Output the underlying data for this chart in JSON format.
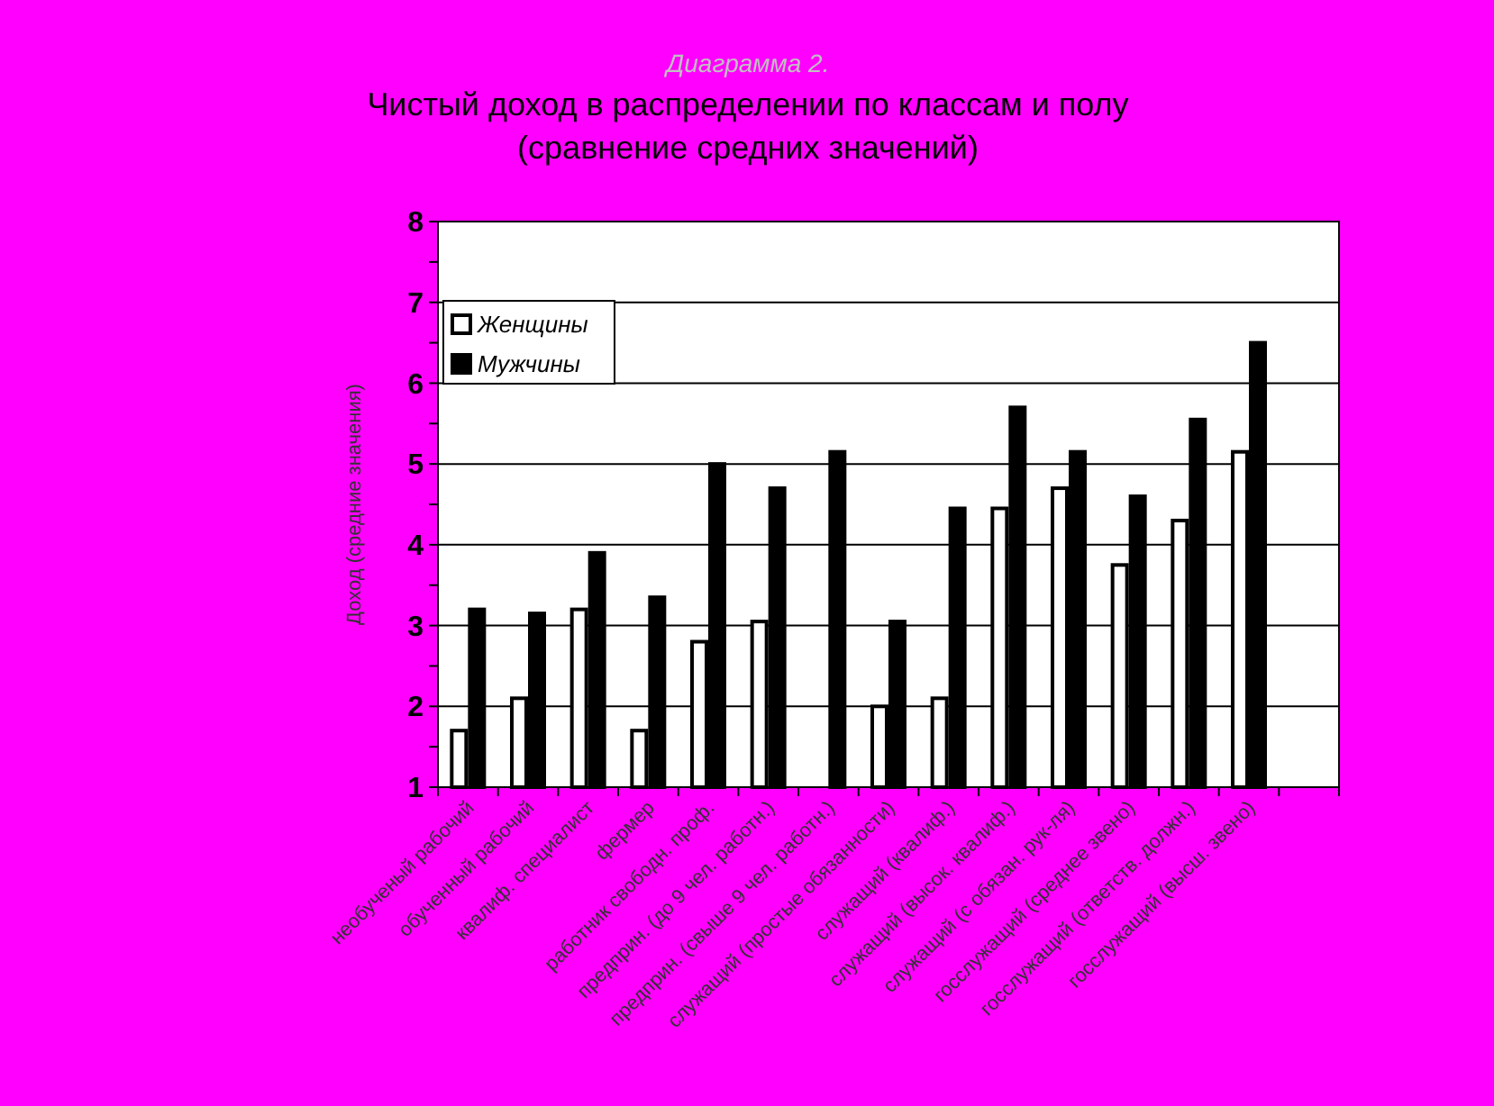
{
  "chart_data": {
    "type": "bar",
    "subtitle": "Диаграмма 2.",
    "title": "Чистый доход в распределении по классам и полу\n(сравнение средних значений)",
    "ylabel": "Доход (средние значения)",
    "categories": [
      "необученый рабочий",
      "обученный рабочий",
      "квалиф. специалист",
      "фермер",
      "работник свободн. проф.",
      "предприн. (до 9 чел. работн.)",
      "предприн. (свыше 9 чел. работн.)",
      "служащий (простые обязанности)",
      "служащий (квалиф.)",
      "служащий (высок. квалиф.)",
      "служащий (с обязан. рук-ля)",
      "госслужащий (среднее звено)",
      "госслужащий (ответств. должн.)",
      "госслужащий (высш. звено)",
      null
    ],
    "series": [
      {
        "name": "Женщины",
        "color": "#ffffff",
        "values": [
          1.7,
          2.1,
          3.2,
          1.7,
          2.8,
          3.05,
          null,
          2.0,
          2.1,
          4.45,
          4.7,
          3.75,
          4.3,
          5.15,
          null
        ]
      },
      {
        "name": "Мужчины",
        "color": "#000000",
        "values": [
          3.2,
          3.15,
          3.9,
          3.35,
          5.0,
          4.7,
          5.15,
          3.05,
          4.45,
          5.7,
          5.15,
          4.6,
          5.55,
          6.5,
          null
        ]
      }
    ],
    "ylim": [
      1,
      8
    ],
    "yticks": [
      1,
      {
        "value": 1.5,
        "label": null
      },
      2,
      {
        "value": 2.5,
        "label": null
      },
      3,
      {
        "value": 3.5,
        "label": null
      },
      4,
      {
        "value": 4.5,
        "label": null
      },
      5,
      {
        "value": 5.5,
        "label": null
      },
      6,
      {
        "value": 6.5,
        "label": null
      },
      7,
      {
        "value": 7.5,
        "label": null
      },
      8
    ],
    "grid": "y",
    "legend": "top left"
  }
}
